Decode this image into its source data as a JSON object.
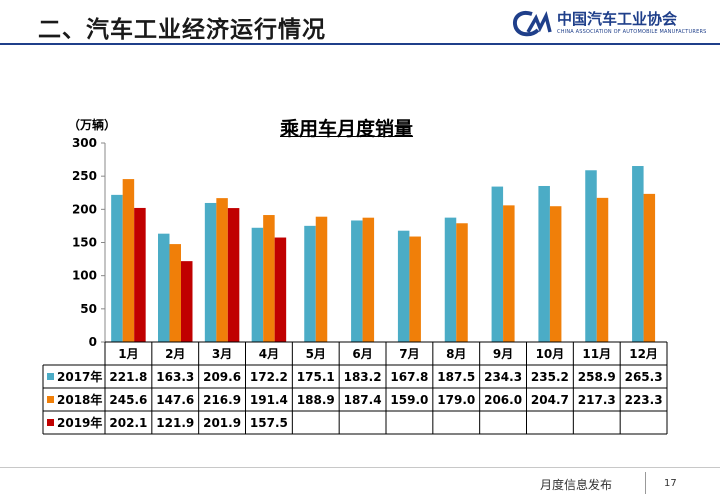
{
  "header": {
    "title": "二、汽车工业经济运行情况"
  },
  "logo": {
    "name": "中国汽车工业协会",
    "sub": "CHINA ASSOCIATION OF AUTOMOBILE MANUFACTURERS"
  },
  "colors": {
    "s2017": "#4BACC6",
    "s2018": "#F07F09",
    "s2019": "#C00000",
    "header_line": "#1F3F8A"
  },
  "chart_data": {
    "type": "bar",
    "title": "乘用车月度销量",
    "unit": "（万辆）",
    "categories": [
      "1月",
      "2月",
      "3月",
      "4月",
      "5月",
      "6月",
      "7月",
      "8月",
      "9月",
      "10月",
      "11月",
      "12月"
    ],
    "ylim": [
      0,
      300
    ],
    "yticks": [
      0,
      50,
      100,
      150,
      200,
      250,
      300
    ],
    "series": [
      {
        "name": "2017年",
        "values": [
          221.8,
          163.3,
          209.6,
          172.2,
          175.1,
          183.2,
          167.8,
          187.5,
          234.3,
          235.2,
          258.9,
          265.3
        ]
      },
      {
        "name": "2018年",
        "values": [
          245.6,
          147.6,
          216.9,
          191.4,
          188.9,
          187.4,
          159.0,
          179.0,
          206.0,
          204.7,
          217.3,
          223.3
        ]
      },
      {
        "name": "2019年",
        "values": [
          202.1,
          121.9,
          201.9,
          157.5,
          null,
          null,
          null,
          null,
          null,
          null,
          null,
          null
        ]
      }
    ],
    "table_cells": [
      [
        "221.8",
        "163.3",
        "209.6",
        "172.2",
        "175.1",
        "183.2",
        "167.8",
        "187.5",
        "234.3",
        "235.2",
        "258.9",
        "265.3"
      ],
      [
        "245.6",
        "147.6",
        "216.9",
        "191.4",
        "188.9",
        "187.4",
        "159.0",
        "179.0",
        "206.0",
        "204.7",
        "217.3",
        "223.3"
      ],
      [
        "202.1",
        "121.9",
        "201.9",
        "157.5",
        "",
        "",
        "",
        "",
        "",
        "",
        "",
        ""
      ]
    ]
  },
  "footer": {
    "text": "月度信息发布",
    "page": "17"
  }
}
